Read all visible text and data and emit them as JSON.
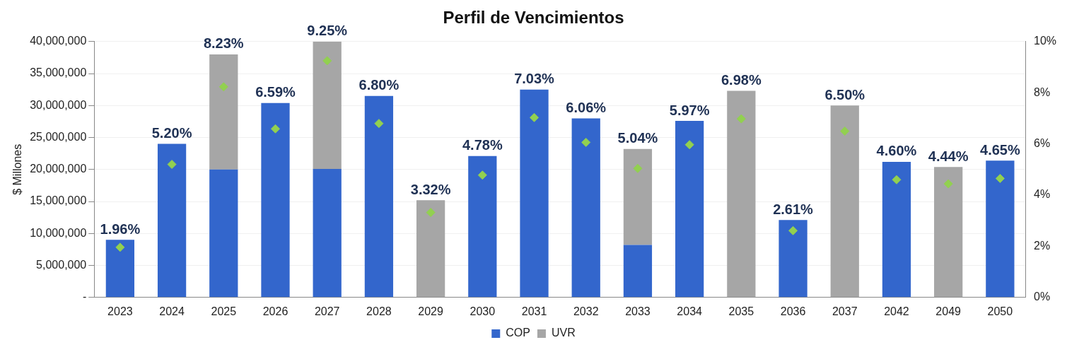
{
  "chart_data": {
    "type": "bar",
    "title": "Perfil de Vencimientos",
    "ylabel": "$ Millones",
    "stacked": true,
    "legend": "bottom",
    "grid": "y",
    "categories": [
      "2023",
      "2024",
      "2025",
      "2026",
      "2027",
      "2028",
      "2029",
      "2030",
      "2031",
      "2032",
      "2033",
      "2034",
      "2035",
      "2036",
      "2037",
      "2042",
      "2049",
      "2050"
    ],
    "series": [
      {
        "name": "COP",
        "color": "#3366cc",
        "values": [
          9000000,
          24000000,
          20000000,
          30400000,
          20100000,
          31500000,
          null,
          22100000,
          32500000,
          28000000,
          8200000,
          27600000,
          null,
          12100000,
          null,
          21200000,
          null,
          21400000
        ]
      },
      {
        "name": "UVR",
        "color": "#a6a6a6",
        "values": [
          null,
          null,
          18000000,
          null,
          19900000,
          null,
          15200000,
          null,
          null,
          null,
          15000000,
          null,
          32300000,
          null,
          30000000,
          null,
          20400000,
          null
        ]
      },
      {
        "type": "scatter",
        "axis": "y2",
        "marker": "diamond",
        "color": "#92d050",
        "values": [
          1.96,
          5.2,
          8.23,
          6.59,
          9.25,
          6.8,
          3.32,
          4.78,
          7.03,
          6.06,
          5.04,
          5.97,
          6.98,
          2.61,
          6.5,
          4.6,
          4.44,
          4.65
        ],
        "value_labels": [
          "1.96%",
          "5.20%",
          "8.23%",
          "6.59%",
          "9.25%",
          "6.80%",
          "3.32%",
          "4.78%",
          "7.03%",
          "6.06%",
          "5.04%",
          "5.97%",
          "6.98%",
          "2.61%",
          "6.50%",
          "4.60%",
          "4.44%",
          "4.65%"
        ]
      }
    ],
    "ylim": [
      0,
      40000000
    ],
    "yticks": [
      {
        "value": 0,
        "label": "-"
      },
      {
        "value": 5000000,
        "label": "5,000,000"
      },
      {
        "value": 10000000,
        "label": "10,000,000"
      },
      {
        "value": 15000000,
        "label": "15,000,000"
      },
      {
        "value": 20000000,
        "label": "20,000,000"
      },
      {
        "value": 25000000,
        "label": "25,000,000"
      },
      {
        "value": 30000000,
        "label": "30,000,000"
      },
      {
        "value": 35000000,
        "label": "35,000,000"
      },
      {
        "value": 40000000,
        "label": "40,000,000"
      }
    ],
    "y2lim": [
      0,
      10
    ],
    "y2ticks": [
      {
        "value": 0,
        "label": "0%"
      },
      {
        "value": 2,
        "label": "2%"
      },
      {
        "value": 4,
        "label": "4%"
      },
      {
        "value": 6,
        "label": "6%"
      },
      {
        "value": 8,
        "label": "8%"
      },
      {
        "value": 10,
        "label": "10%"
      }
    ]
  }
}
